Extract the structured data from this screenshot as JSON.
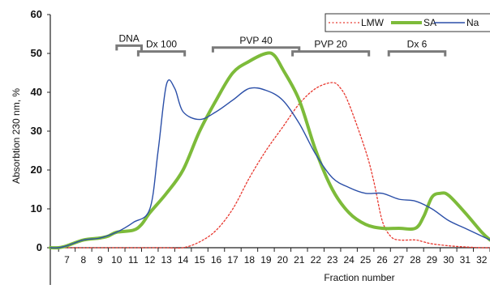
{
  "chart_data": {
    "type": "line",
    "ylabel": "Absorbtion  230 nm, %",
    "xlabel": "Fraction number",
    "ylim": [
      0,
      60
    ],
    "xlim": [
      6,
      32.5
    ],
    "y_ticks": [
      "0",
      "10",
      "20",
      "30",
      "40",
      "50",
      "60"
    ],
    "x_ticks": [
      "7",
      "8",
      "9",
      "10",
      "11",
      "12",
      "13",
      "14",
      "15",
      "16",
      "17",
      "18",
      "19",
      "20",
      "21",
      "22",
      "23",
      "24",
      "25",
      "26",
      "27",
      "28",
      "29",
      "30",
      "31",
      "32"
    ],
    "grid": false,
    "legend_position": "top-right",
    "series": [
      {
        "name": "LMW",
        "color": "#e8382f",
        "style": "dotted",
        "points": [
          [
            6,
            0
          ],
          [
            7,
            0
          ],
          [
            8,
            0
          ],
          [
            9,
            0
          ],
          [
            10,
            0
          ],
          [
            11,
            0
          ],
          [
            12,
            0
          ],
          [
            13,
            0
          ],
          [
            14,
            0
          ],
          [
            15,
            1.5
          ],
          [
            16,
            4.5
          ],
          [
            17,
            10
          ],
          [
            18,
            18
          ],
          [
            19,
            25
          ],
          [
            20,
            31
          ],
          [
            21,
            37
          ],
          [
            22,
            41
          ],
          [
            23,
            42.5
          ],
          [
            23.5,
            41
          ],
          [
            24,
            37
          ],
          [
            25,
            25
          ],
          [
            25.5,
            17
          ],
          [
            26,
            7
          ],
          [
            26.5,
            3
          ],
          [
            27,
            2
          ],
          [
            28,
            2
          ],
          [
            28.5,
            1.5
          ],
          [
            29,
            1
          ],
          [
            30,
            0.5
          ],
          [
            31,
            0.2
          ],
          [
            32,
            0
          ],
          [
            32.5,
            0
          ]
        ]
      },
      {
        "name": "SA",
        "color": "#7dbb3a",
        "style": "solid-thick",
        "points": [
          [
            6,
            0
          ],
          [
            6.5,
            0
          ],
          [
            7,
            0.5
          ],
          [
            8,
            2
          ],
          [
            9,
            2.5
          ],
          [
            9.5,
            3
          ],
          [
            10,
            4
          ],
          [
            11,
            4.5
          ],
          [
            11.5,
            6
          ],
          [
            12,
            9
          ],
          [
            13,
            14
          ],
          [
            14,
            20
          ],
          [
            15,
            30
          ],
          [
            16,
            38
          ],
          [
            17,
            45
          ],
          [
            18,
            48
          ],
          [
            19,
            50
          ],
          [
            19.5,
            49.5
          ],
          [
            20,
            46
          ],
          [
            21,
            38
          ],
          [
            22,
            25
          ],
          [
            23,
            15
          ],
          [
            24,
            9
          ],
          [
            25,
            6
          ],
          [
            26,
            5
          ],
          [
            27,
            5
          ],
          [
            28,
            5
          ],
          [
            28.5,
            8
          ],
          [
            29,
            13
          ],
          [
            29.5,
            14
          ],
          [
            30,
            13.5
          ],
          [
            31,
            9
          ],
          [
            32,
            4
          ],
          [
            32.5,
            2
          ]
        ]
      },
      {
        "name": "Na",
        "color": "#2b4fa8",
        "style": "solid",
        "points": [
          [
            6,
            0
          ],
          [
            6.5,
            0
          ],
          [
            7,
            0.5
          ],
          [
            8,
            2
          ],
          [
            9,
            2.5
          ],
          [
            10,
            4
          ],
          [
            11,
            6.5
          ],
          [
            12,
            10
          ],
          [
            12.5,
            25
          ],
          [
            13,
            42
          ],
          [
            13.5,
            41
          ],
          [
            14,
            35
          ],
          [
            15,
            33
          ],
          [
            16,
            35
          ],
          [
            17,
            38
          ],
          [
            18,
            41
          ],
          [
            19,
            40.5
          ],
          [
            20,
            38
          ],
          [
            21,
            32
          ],
          [
            22,
            24
          ],
          [
            23,
            18
          ],
          [
            24,
            15.5
          ],
          [
            25,
            14
          ],
          [
            26,
            14
          ],
          [
            27,
            12.5
          ],
          [
            28,
            12
          ],
          [
            29,
            10
          ],
          [
            30,
            7
          ],
          [
            31,
            5
          ],
          [
            32,
            3
          ],
          [
            32.5,
            2
          ]
        ]
      }
    ],
    "brackets": [
      {
        "label": "DNA",
        "x_start": 10,
        "x_end": 11.5,
        "level": 52
      },
      {
        "label": "Dx 100",
        "x_start": 11.3,
        "x_end": 14.1,
        "level": 50.5
      },
      {
        "label": "PVP 40",
        "x_start": 15.8,
        "x_end": 21,
        "level": 51.5
      },
      {
        "label": "PVP 20",
        "x_start": 20.6,
        "x_end": 25.2,
        "level": 50.5
      },
      {
        "label": "Dx 6",
        "x_start": 26.4,
        "x_end": 29.8,
        "level": 50.5
      }
    ],
    "bracket_color": "#7a7a7a"
  }
}
